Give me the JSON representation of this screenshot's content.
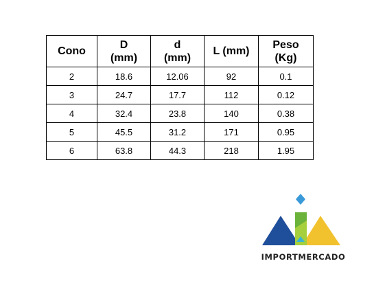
{
  "table": {
    "headers": [
      {
        "line1": "Cono",
        "line2": ""
      },
      {
        "line1": "D",
        "line2": "(mm)"
      },
      {
        "line1": "d",
        "line2": "(mm)"
      },
      {
        "line1": "L (mm)",
        "line2": ""
      },
      {
        "line1": "Peso",
        "line2": "(Kg)"
      }
    ],
    "rows": [
      [
        "2",
        "18.6",
        "12.06",
        "92",
        "0.1"
      ],
      [
        "3",
        "24.7",
        "17.7",
        "112",
        "0.12"
      ],
      [
        "4",
        "32.4",
        "23.8",
        "140",
        "0.38"
      ],
      [
        "5",
        "45.5",
        "31.2",
        "171",
        "0.95"
      ],
      [
        "6",
        "63.8",
        "44.3",
        "218",
        "1.95"
      ]
    ]
  },
  "logo": {
    "text": "IMPORTMERCADO",
    "colors": {
      "blue": "#1f4e9a",
      "green": "#6bb23a",
      "yellow": "#f2c22e",
      "diamond": "#3a9ad9"
    }
  }
}
